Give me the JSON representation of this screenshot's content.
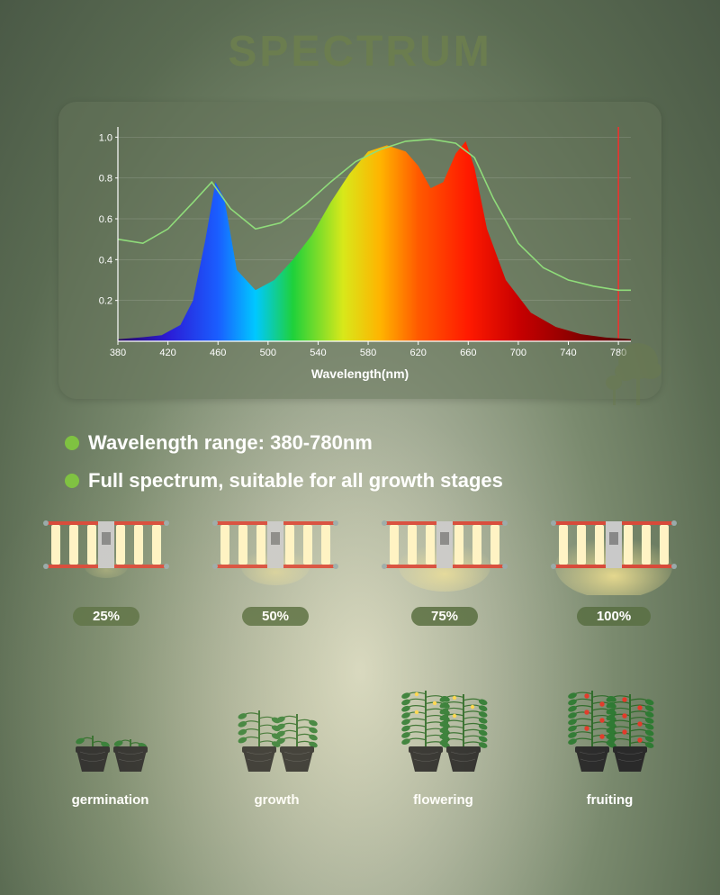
{
  "title": "SPECTRUM",
  "chart": {
    "type": "area-spectrum",
    "x_axis_label": "Wavelength(nm)",
    "x_ticks": [
      380,
      420,
      460,
      500,
      540,
      580,
      620,
      660,
      700,
      740,
      780
    ],
    "y_ticks": [
      0.2,
      0.4,
      0.6,
      0.8,
      1.0
    ],
    "xlim": [
      380,
      790
    ],
    "ylim": [
      0,
      1.05
    ],
    "tick_fontsize": 11,
    "tick_color": "#ffffff",
    "label_fontsize": 14,
    "bg_color": "rgba(100,115,90,0.55)",
    "gradient_stops": [
      {
        "wl": 380,
        "color": "#2a0a5e"
      },
      {
        "wl": 420,
        "color": "#2b1bd6"
      },
      {
        "wl": 460,
        "color": "#1a5eff"
      },
      {
        "wl": 490,
        "color": "#00c8ff"
      },
      {
        "wl": 520,
        "color": "#1fd13a"
      },
      {
        "wl": 560,
        "color": "#d8e81a"
      },
      {
        "wl": 590,
        "color": "#ffb300"
      },
      {
        "wl": 620,
        "color": "#ff5a00"
      },
      {
        "wl": 660,
        "color": "#ff1a00"
      },
      {
        "wl": 700,
        "color": "#c80000"
      },
      {
        "wl": 780,
        "color": "#5a0000"
      }
    ],
    "spectrum_curve": [
      [
        380,
        0.01
      ],
      [
        400,
        0.02
      ],
      [
        415,
        0.03
      ],
      [
        430,
        0.08
      ],
      [
        440,
        0.2
      ],
      [
        450,
        0.5
      ],
      [
        458,
        0.78
      ],
      [
        465,
        0.7
      ],
      [
        475,
        0.35
      ],
      [
        490,
        0.25
      ],
      [
        505,
        0.3
      ],
      [
        520,
        0.4
      ],
      [
        535,
        0.52
      ],
      [
        550,
        0.68
      ],
      [
        565,
        0.82
      ],
      [
        580,
        0.93
      ],
      [
        595,
        0.96
      ],
      [
        610,
        0.93
      ],
      [
        620,
        0.86
      ],
      [
        630,
        0.75
      ],
      [
        640,
        0.78
      ],
      [
        650,
        0.92
      ],
      [
        658,
        0.98
      ],
      [
        665,
        0.85
      ],
      [
        675,
        0.55
      ],
      [
        690,
        0.3
      ],
      [
        710,
        0.14
      ],
      [
        730,
        0.07
      ],
      [
        750,
        0.035
      ],
      [
        770,
        0.018
      ],
      [
        790,
        0.01
      ]
    ],
    "overlay_line": {
      "color": "#8fdc7a",
      "width": 1.6,
      "points": [
        [
          380,
          0.5
        ],
        [
          400,
          0.48
        ],
        [
          420,
          0.55
        ],
        [
          440,
          0.68
        ],
        [
          455,
          0.78
        ],
        [
          470,
          0.65
        ],
        [
          490,
          0.55
        ],
        [
          510,
          0.58
        ],
        [
          530,
          0.67
        ],
        [
          550,
          0.78
        ],
        [
          570,
          0.88
        ],
        [
          590,
          0.94
        ],
        [
          610,
          0.98
        ],
        [
          630,
          0.99
        ],
        [
          650,
          0.97
        ],
        [
          665,
          0.9
        ],
        [
          680,
          0.7
        ],
        [
          700,
          0.48
        ],
        [
          720,
          0.36
        ],
        [
          740,
          0.3
        ],
        [
          760,
          0.27
        ],
        [
          780,
          0.25
        ],
        [
          790,
          0.25
        ]
      ]
    },
    "vline_at": 780,
    "vline_color": "#ff2a2a"
  },
  "bullets": [
    "Wavelength range: 380-780nm",
    "Full spectrum, suitable for all growth stages"
  ],
  "lights": {
    "frame_color": "#d84a3a",
    "bar_color": "#fff3c4",
    "glow_color": "rgba(255,235,150,0.9)",
    "levels": [
      {
        "pct": "25%",
        "brightness": 0.25
      },
      {
        "pct": "50%",
        "brightness": 0.5
      },
      {
        "pct": "75%",
        "brightness": 0.75
      },
      {
        "pct": "100%",
        "brightness": 1.0
      }
    ]
  },
  "stages": [
    {
      "key": "germination",
      "label": "germination",
      "plant_h": 12,
      "leaves": 2,
      "fruit": 0
    },
    {
      "key": "growth",
      "label": "growth",
      "plant_h": 40,
      "leaves": 8,
      "fruit": 0
    },
    {
      "key": "flowering",
      "label": "flowering",
      "plant_h": 62,
      "leaves": 16,
      "fruit": 3
    },
    {
      "key": "fruiting",
      "label": "fruiting",
      "plant_h": 62,
      "leaves": 16,
      "fruit": 18
    }
  ],
  "pot_color": "#2a2a2a",
  "stem_color": "#2f6b2a",
  "leaf_color": "#2f7a33",
  "flower_color": "#ffd54a",
  "fruit_color": "#e23a2a",
  "tree_color": "#6a7a4f"
}
